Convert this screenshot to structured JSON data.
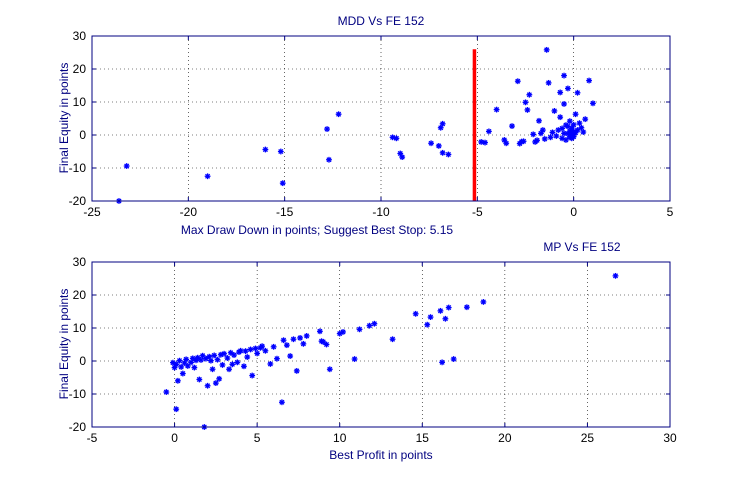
{
  "chart_data": [
    {
      "type": "scatter",
      "title": "MDD Vs FE  152",
      "xlabel": "Max Draw Down in points; Suggest Best Stop: 5.15",
      "ylabel": "Final Equity in points",
      "xlim": [
        -25,
        5
      ],
      "ylim": [
        -20,
        30
      ],
      "xticks": [
        -25,
        -20,
        -15,
        -10,
        -5,
        0,
        5
      ],
      "yticks": [
        -20,
        -10,
        0,
        10,
        20,
        30
      ],
      "xtick_labels": [
        "-25",
        "-20",
        "-15",
        "-10",
        "-5",
        "0",
        "5"
      ],
      "ytick_labels": [
        "-20",
        "-10",
        "0",
        "10",
        "20",
        "30"
      ],
      "grid": true,
      "marker_color": "#0000ff",
      "stop_line": {
        "x": -5.15,
        "y_range": [
          -20,
          26
        ],
        "color": "#ff0000"
      },
      "points": [
        [
          -23.6,
          -20
        ],
        [
          -23.2,
          -9.4
        ],
        [
          -19,
          -12.5
        ],
        [
          -16,
          -4.4
        ],
        [
          -15.2,
          -5
        ],
        [
          -15.1,
          -14.6
        ],
        [
          -12.8,
          1.8
        ],
        [
          -12.7,
          -7.5
        ],
        [
          -12.2,
          6.3
        ],
        [
          -9.4,
          -0.7
        ],
        [
          -9.2,
          -1
        ],
        [
          -9,
          -5.6
        ],
        [
          -8.9,
          -6.7
        ],
        [
          -7.4,
          -2.5
        ],
        [
          -7,
          -3.3
        ],
        [
          -6.9,
          2.2
        ],
        [
          -6.8,
          3.4
        ],
        [
          -6.8,
          -5.4
        ],
        [
          -6.5,
          -5.9
        ],
        [
          -4.8,
          -2.1
        ],
        [
          -4.6,
          -2.3
        ],
        [
          -4.4,
          1.1
        ],
        [
          -4,
          7.7
        ],
        [
          -3.6,
          -1.5
        ],
        [
          -3.5,
          -2.5
        ],
        [
          -3.2,
          2.7
        ],
        [
          -2.9,
          16.3
        ],
        [
          -2.8,
          -2.6
        ],
        [
          -2.7,
          -2
        ],
        [
          -2.6,
          -1.9
        ],
        [
          -2.5,
          9.9
        ],
        [
          -2.4,
          7.6
        ],
        [
          -2.3,
          12.2
        ],
        [
          -2.1,
          0.2
        ],
        [
          -2,
          -2.1
        ],
        [
          -1.9,
          -1.6
        ],
        [
          -1.8,
          4.3
        ],
        [
          -1.7,
          0.5
        ],
        [
          -1.6,
          1.5
        ],
        [
          -1.5,
          -1.2
        ],
        [
          -1.4,
          25.8
        ],
        [
          -1.3,
          15.8
        ],
        [
          -1.2,
          -0.7
        ],
        [
          -1.1,
          0.8
        ],
        [
          -1,
          7.3
        ],
        [
          -0.9,
          -0.3
        ],
        [
          -0.8,
          1.5
        ],
        [
          -0.7,
          5.4
        ],
        [
          -0.7,
          12.9
        ],
        [
          -0.6,
          -1
        ],
        [
          -0.6,
          2
        ],
        [
          -0.5,
          18
        ],
        [
          -0.5,
          0.5
        ],
        [
          -0.5,
          9.4
        ],
        [
          -0.4,
          3
        ],
        [
          -0.4,
          -1.5
        ],
        [
          -0.3,
          0.4
        ],
        [
          -0.3,
          2.6
        ],
        [
          -0.3,
          14.1
        ],
        [
          -0.2,
          -0.6
        ],
        [
          -0.2,
          1.2
        ],
        [
          -0.2,
          4.2
        ],
        [
          -0.1,
          0.2
        ],
        [
          -0.1,
          2.1
        ],
        [
          -0.1,
          -1
        ],
        [
          0,
          0
        ],
        [
          0,
          1.1
        ],
        [
          0,
          3.1
        ],
        [
          0,
          -0.5
        ],
        [
          0.1,
          0.7
        ],
        [
          0.1,
          6.3
        ],
        [
          0.2,
          1.5
        ],
        [
          0.2,
          12.8
        ],
        [
          0.3,
          3.6
        ],
        [
          0.4,
          2.2
        ],
        [
          0.5,
          0.9
        ],
        [
          0.6,
          4.8
        ],
        [
          0.8,
          16.5
        ],
        [
          1,
          9.6
        ]
      ]
    },
    {
      "type": "scatter",
      "title": "MP Vs FE 152",
      "xlabel": "Best Profit in points",
      "ylabel": "Final Equity in points",
      "xlim": [
        -5,
        30
      ],
      "ylim": [
        -20,
        30
      ],
      "xticks": [
        -5,
        0,
        5,
        10,
        15,
        20,
        25,
        30
      ],
      "yticks": [
        -20,
        -10,
        0,
        10,
        20,
        30
      ],
      "xtick_labels": [
        "-5",
        "0",
        "5",
        "10",
        "15",
        "20",
        "25",
        "30"
      ],
      "ytick_labels": [
        "-20",
        "-10",
        "0",
        "10",
        "20",
        "30"
      ],
      "grid": true,
      "marker_color": "#0000ff",
      "points": [
        [
          -0.5,
          -9.4
        ],
        [
          -0.1,
          -0.5
        ],
        [
          0,
          -2
        ],
        [
          0.1,
          -14.6
        ],
        [
          0.1,
          -1
        ],
        [
          0.2,
          -6
        ],
        [
          0.3,
          0.1
        ],
        [
          0.4,
          -1.8
        ],
        [
          0.5,
          -3.8
        ],
        [
          0.6,
          -0.6
        ],
        [
          0.7,
          0.5
        ],
        [
          0.8,
          -1.5
        ],
        [
          1,
          -0.4
        ],
        [
          1.1,
          0.8
        ],
        [
          1.2,
          -2
        ],
        [
          1.3,
          0.2
        ],
        [
          1.4,
          1
        ],
        [
          1.5,
          -5.6
        ],
        [
          1.6,
          0.3
        ],
        [
          1.7,
          1.6
        ],
        [
          1.8,
          -20
        ],
        [
          1.9,
          0.7
        ],
        [
          2,
          -7.5
        ],
        [
          2.1,
          1.3
        ],
        [
          2.2,
          0.1
        ],
        [
          2.3,
          -2.5
        ],
        [
          2.4,
          1.7
        ],
        [
          2.5,
          -6.7
        ],
        [
          2.6,
          0.4
        ],
        [
          2.7,
          -5.4
        ],
        [
          2.8,
          1.9
        ],
        [
          2.9,
          -1.2
        ],
        [
          3,
          2.2
        ],
        [
          3.2,
          0.9
        ],
        [
          3.3,
          -2.5
        ],
        [
          3.4,
          2.5
        ],
        [
          3.5,
          -1
        ],
        [
          3.6,
          1.8
        ],
        [
          3.8,
          -0.4
        ],
        [
          3.9,
          2.7
        ],
        [
          4,
          3.1
        ],
        [
          4.2,
          -1.6
        ],
        [
          4.3,
          3
        ],
        [
          4.4,
          1.2
        ],
        [
          4.6,
          3.5
        ],
        [
          4.7,
          -4.4
        ],
        [
          4.9,
          3.8
        ],
        [
          5,
          2.3
        ],
        [
          5.2,
          4
        ],
        [
          5.3,
          4.5
        ],
        [
          5.5,
          3.1
        ],
        [
          5.8,
          -0.9
        ],
        [
          6,
          4.3
        ],
        [
          6.2,
          0.7
        ],
        [
          6.5,
          -12.5
        ],
        [
          6.6,
          6.3
        ],
        [
          6.8,
          4.8
        ],
        [
          7,
          1.5
        ],
        [
          7.2,
          6.6
        ],
        [
          7.4,
          -3
        ],
        [
          7.6,
          7
        ],
        [
          7.8,
          5.2
        ],
        [
          8,
          7.6
        ],
        [
          8.8,
          9
        ],
        [
          8.9,
          6
        ],
        [
          9,
          5.8
        ],
        [
          9.2,
          5
        ],
        [
          9.4,
          -2.5
        ],
        [
          10,
          8.3
        ],
        [
          10.2,
          8.8
        ],
        [
          10.9,
          0.6
        ],
        [
          11.2,
          9.6
        ],
        [
          11.8,
          10.7
        ],
        [
          12.1,
          11.3
        ],
        [
          13.2,
          6.6
        ],
        [
          14.6,
          14.3
        ],
        [
          15.3,
          11
        ],
        [
          15.5,
          13.3
        ],
        [
          16.1,
          15.2
        ],
        [
          16.2,
          -0.4
        ],
        [
          16.4,
          12.8
        ],
        [
          16.6,
          16.2
        ],
        [
          16.9,
          0.6
        ],
        [
          17.7,
          16.3
        ],
        [
          18.7,
          17.9
        ],
        [
          26.7,
          25.8
        ]
      ]
    }
  ]
}
